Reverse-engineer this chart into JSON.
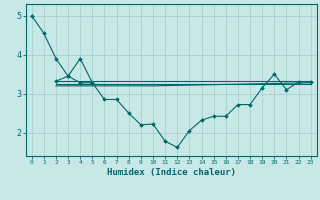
{
  "title": "",
  "xlabel": "Humidex (Indice chaleur)",
  "ylabel": "",
  "bg_color": "#c8e8e8",
  "grid_color": "#a8d0d0",
  "line_color": "#006868",
  "xlim": [
    -0.5,
    23.5
  ],
  "ylim": [
    1.4,
    5.3
  ],
  "yticks": [
    2,
    3,
    4,
    5
  ],
  "xticks": [
    0,
    1,
    2,
    3,
    4,
    5,
    6,
    7,
    8,
    9,
    10,
    11,
    12,
    13,
    14,
    15,
    16,
    17,
    18,
    19,
    20,
    21,
    22,
    23
  ],
  "series": [
    {
      "x": [
        0,
        1,
        2,
        3,
        4,
        5
      ],
      "y": [
        5.0,
        4.55,
        3.9,
        3.45,
        3.28,
        3.28
      ],
      "marker": true
    },
    {
      "x": [
        2,
        3,
        4,
        5,
        6,
        7,
        8,
        9,
        10,
        11,
        12,
        13,
        14,
        15,
        16,
        17,
        18,
        19,
        20,
        21,
        22,
        23
      ],
      "y": [
        3.32,
        3.45,
        3.9,
        3.28,
        2.85,
        2.85,
        2.5,
        2.2,
        2.22,
        1.78,
        1.62,
        2.05,
        2.32,
        2.42,
        2.42,
        2.72,
        2.72,
        3.15,
        3.5,
        3.1,
        3.3,
        3.3
      ],
      "marker": true
    },
    {
      "x": [
        2,
        23
      ],
      "y": [
        3.32,
        3.32
      ],
      "marker": false
    },
    {
      "x": [
        2,
        23
      ],
      "y": [
        3.25,
        3.25
      ],
      "marker": false
    },
    {
      "x": [
        2,
        10,
        23
      ],
      "y": [
        3.2,
        3.2,
        3.28
      ],
      "marker": false
    }
  ]
}
